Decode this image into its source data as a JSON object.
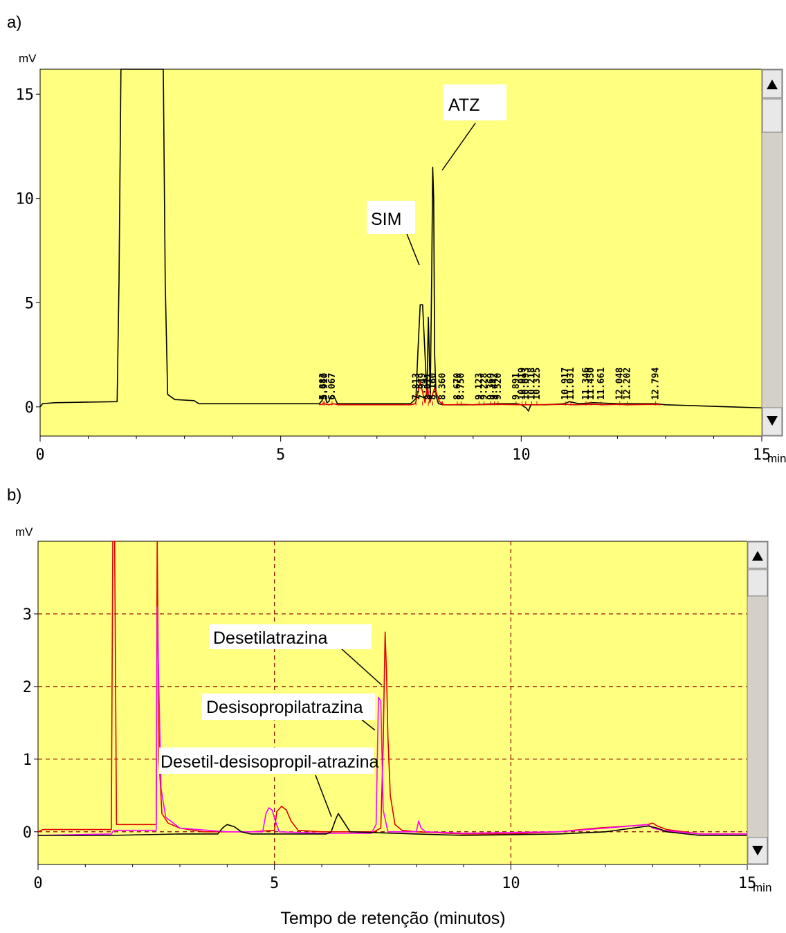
{
  "colors": {
    "plot_bg": "#ffff80",
    "trace_black": "#000000",
    "trace_red": "#e00000",
    "trace_magenta": "#ff00ff",
    "grid_red": "#8b0000",
    "scroll_track": "#d4d0c8"
  },
  "icons": [
    "scroll-up-arrow-icon",
    "scroll-down-arrow-icon"
  ],
  "figure": {
    "x_title": "Tempo de retenção (minutos)"
  },
  "chart_data": [
    {
      "type": "line",
      "panel_label": "a)",
      "y_unit": "mV",
      "x_unit": "min",
      "xlim": [
        0,
        15
      ],
      "ylim": [
        -1.4,
        16.2
      ],
      "xticks": [
        0,
        5,
        10,
        15
      ],
      "yticks": [
        0,
        5,
        10,
        15
      ],
      "x_tick_labels": [
        "0",
        "5",
        "10",
        "15"
      ],
      "y_tick_labels": [
        "0",
        "5",
        "10",
        "15"
      ],
      "grid": false,
      "peak_labels": [
        "5.883",
        "5.910",
        "6.067",
        "7.813",
        "7.949",
        "8.071",
        "8.160",
        "8.360",
        "8.670",
        "8.750",
        "9.123",
        "9.228",
        "9.369",
        "9.442",
        "9.520",
        "9.891",
        "10.019",
        "10.093",
        "10.218",
        "10.325",
        "10.917",
        "11.031",
        "11.346",
        "11.450",
        "11.661",
        "12.048",
        "12.202",
        "12.794"
      ],
      "annotations": [
        {
          "text": "ATZ",
          "x": 8.16,
          "y": 11.5
        },
        {
          "text": "SIM",
          "x": 8.071,
          "y": 6.7
        }
      ],
      "series": [
        {
          "color": "black",
          "x": [
            0,
            0.05,
            0.3,
            1.6,
            1.64,
            1.68,
            1.72,
            1.76,
            1.9,
            2.3,
            2.52,
            2.56,
            2.6,
            2.65,
            2.8,
            3.2,
            3.3,
            5.8,
            5.86,
            5.88,
            5.92,
            5.96,
            6.0,
            6.04,
            6.07,
            6.12,
            6.18,
            7.7,
            7.81,
            7.85,
            7.9,
            7.95,
            8.0,
            8.04,
            8.07,
            8.11,
            8.14,
            8.16,
            8.18,
            8.2,
            8.23,
            8.28,
            8.4,
            8.6,
            8.75,
            9.0,
            9.5,
            9.9,
            10.0,
            10.1,
            10.15,
            10.2,
            10.5,
            10.9,
            11.0,
            11.2,
            11.5,
            12.0,
            12.8,
            13.0,
            15
          ],
          "y": [
            0,
            0.15,
            0.2,
            0.25,
            6,
            16.5,
            16.5,
            16.5,
            16.5,
            16.5,
            16.5,
            16.5,
            6,
            0.6,
            0.35,
            0.3,
            0.15,
            0.15,
            0.3,
            0.55,
            0.5,
            0.2,
            0.25,
            0.5,
            0.55,
            0.45,
            0.15,
            0.15,
            0.4,
            2.5,
            4.9,
            4.9,
            2.5,
            0.5,
            4.3,
            0.6,
            6.5,
            11.5,
            10.0,
            2.5,
            0.5,
            0.15,
            0.1,
            0.1,
            0.1,
            0.1,
            0.15,
            0.15,
            0.1,
            -0.05,
            -0.2,
            0.1,
            0.1,
            0.15,
            0.25,
            0.15,
            0.2,
            0.15,
            0.15,
            0.1,
            -0.05
          ]
        },
        {
          "color": "red",
          "x": [
            5.8,
            5.9,
            6.0,
            6.1,
            6.2,
            7.7,
            7.8,
            7.9,
            8.0,
            8.05,
            8.1,
            8.2,
            8.3,
            8.4,
            8.6,
            8.75,
            9.0,
            9.5,
            10.0,
            10.25,
            10.9,
            11.1,
            11.5,
            11.7,
            12.0,
            12.2,
            12.8,
            12.9
          ],
          "y": [
            0.1,
            0.15,
            0.1,
            0.15,
            0.1,
            0.1,
            0.15,
            1.2,
            0.2,
            1.0,
            0.2,
            0.9,
            0.25,
            0.1,
            0.1,
            0.12,
            0.1,
            0.12,
            0.1,
            0.1,
            0.12,
            0.1,
            0.12,
            0.1,
            0.12,
            0.1,
            0.12,
            0.1
          ]
        }
      ]
    },
    {
      "type": "line",
      "panel_label": "b)",
      "y_unit": "mV",
      "x_unit": "min",
      "xlim": [
        0,
        15
      ],
      "ylim": [
        -0.45,
        4.0
      ],
      "xticks": [
        0,
        5,
        10,
        15
      ],
      "yticks": [
        0,
        1,
        2,
        3
      ],
      "x_tick_labels": [
        "0",
        "5",
        "10",
        "15"
      ],
      "y_tick_labels": [
        "0",
        "1",
        "2",
        "3"
      ],
      "grid": true,
      "annotations": [
        {
          "text": "Desetilatrazina",
          "x": 7.35,
          "y": 2.05
        },
        {
          "text": "Desisopropilatrazina",
          "x": 7.2,
          "y": 1.35
        },
        {
          "text": "Desetil-desisopropil-atrazina",
          "x": 6.25,
          "y": 0.18
        }
      ],
      "series": [
        {
          "color": "red",
          "x": [
            0,
            0.1,
            1.55,
            1.58,
            1.62,
            1.66,
            2.5,
            2.52,
            2.56,
            2.62,
            2.75,
            3.0,
            3.5,
            4.5,
            5.0,
            5.05,
            5.15,
            5.25,
            5.35,
            5.5,
            6.0,
            7.1,
            7.25,
            7.3,
            7.34,
            7.37,
            7.4,
            7.45,
            7.55,
            7.7,
            8.0,
            9.0,
            10.0,
            11.0,
            11.8,
            12.5,
            12.9,
            13.0,
            13.1,
            13.3,
            14.0,
            15
          ],
          "y": [
            0.0,
            0.03,
            0.03,
            4.5,
            4.5,
            0.1,
            0.1,
            4.5,
            1.0,
            0.25,
            0.12,
            0.05,
            0.0,
            0.0,
            0.02,
            0.28,
            0.35,
            0.3,
            0.15,
            0.02,
            0.0,
            0.0,
            0.05,
            1.2,
            2.75,
            2.2,
            1.3,
            0.5,
            0.1,
            0.02,
            0.0,
            -0.03,
            -0.03,
            0.0,
            0.05,
            0.08,
            0.1,
            0.12,
            0.08,
            0.03,
            -0.03,
            -0.03
          ]
        },
        {
          "color": "magenta",
          "x": [
            0,
            1.55,
            1.6,
            2.5,
            2.52,
            2.6,
            2.7,
            3.0,
            4.0,
            4.75,
            4.82,
            4.88,
            4.95,
            5.02,
            5.1,
            6.0,
            7.05,
            7.15,
            7.2,
            7.25,
            7.3,
            7.4,
            8.0,
            8.05,
            8.1,
            8.2,
            9.0,
            11.0,
            12.0,
            12.9,
            13.0,
            13.2,
            14.0,
            15
          ],
          "y": [
            -0.05,
            -0.03,
            0.02,
            0.02,
            3.1,
            0.6,
            0.2,
            0.05,
            0.0,
            0.0,
            0.25,
            0.33,
            0.3,
            0.15,
            0.0,
            -0.02,
            -0.02,
            0.1,
            1.85,
            1.8,
            0.3,
            0.0,
            0.0,
            0.15,
            0.05,
            0.0,
            -0.02,
            0.0,
            0.05,
            0.1,
            0.05,
            0.02,
            -0.03,
            -0.03
          ]
        },
        {
          "color": "black",
          "x": [
            0,
            1.5,
            3.0,
            3.8,
            3.9,
            4.0,
            4.15,
            4.3,
            4.5,
            6.1,
            6.2,
            6.3,
            6.35,
            6.45,
            6.6,
            8.0,
            9.0,
            10.0,
            11.0,
            12.0,
            12.9,
            13.1,
            13.3,
            14.0,
            15
          ],
          "y": [
            -0.05,
            -0.05,
            -0.03,
            -0.03,
            0.05,
            0.1,
            0.07,
            0.0,
            -0.03,
            -0.03,
            0.0,
            0.18,
            0.25,
            0.15,
            0.0,
            -0.03,
            -0.05,
            -0.04,
            -0.03,
            0.0,
            0.08,
            0.05,
            0.0,
            -0.05,
            -0.05
          ]
        }
      ]
    }
  ]
}
